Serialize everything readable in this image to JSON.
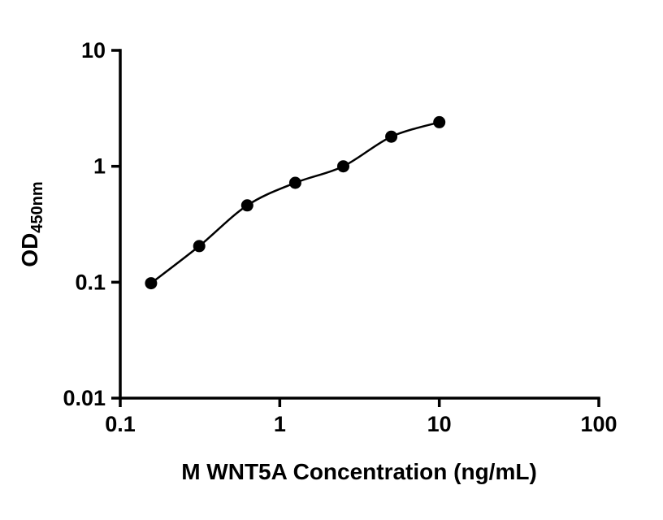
{
  "chart_data": {
    "type": "scatter",
    "title": "",
    "xlabel": "M WNT5A Concentration (ng/mL)",
    "ylabel_main": "OD",
    "ylabel_sub": "450nm",
    "xscale": "log",
    "yscale": "log",
    "xlim": [
      0.1,
      100
    ],
    "ylim": [
      0.01,
      10
    ],
    "grid": "off",
    "legend": "none",
    "x_ticks": [
      {
        "value": 0.1,
        "label": "0.1"
      },
      {
        "value": 1,
        "label": "1"
      },
      {
        "value": 10,
        "label": "10"
      },
      {
        "value": 100,
        "label": "100"
      }
    ],
    "y_ticks": [
      {
        "value": 10,
        "label": "10"
      },
      {
        "value": 1,
        "label": "1"
      },
      {
        "value": 0.1,
        "label": "0.1"
      },
      {
        "value": 0.01,
        "label": "0.01"
      }
    ],
    "x": [
      0.156,
      0.3125,
      0.625,
      1.25,
      2.5,
      5,
      10
    ],
    "y": [
      0.098,
      0.205,
      0.46,
      0.72,
      1.0,
      1.8,
      2.4
    ],
    "curve_style": "smooth-fit-line",
    "point_color": "#000000",
    "line_color": "#000000",
    "axis_color": "#000000",
    "background_color": "#ffffff"
  }
}
